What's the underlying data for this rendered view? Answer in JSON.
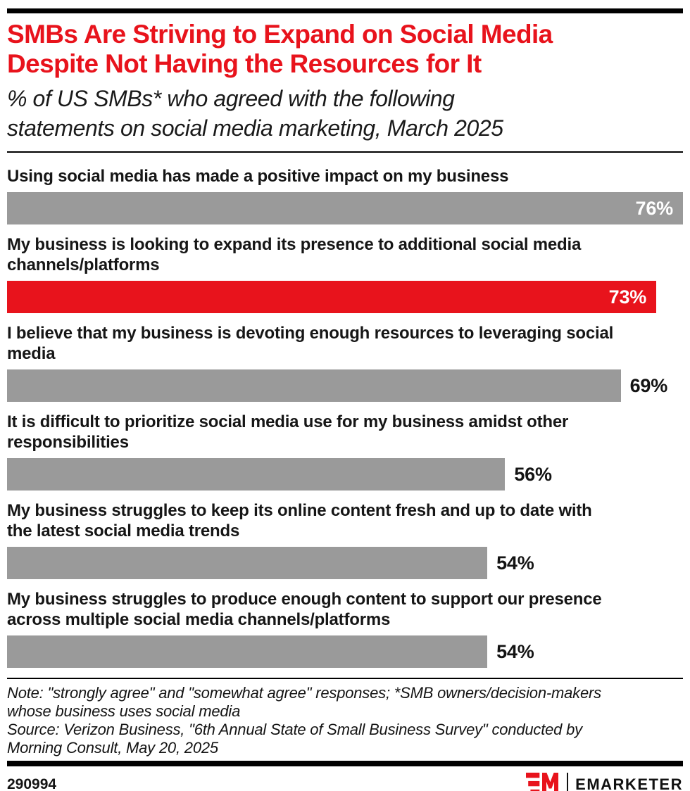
{
  "theme": {
    "accent_red": "#e8131c",
    "bar_gray": "#9a9a9a",
    "text_black": "#141414",
    "rule_black": "#000000",
    "background": "#ffffff"
  },
  "header": {
    "title_lines": [
      "SMBs Are Striving to Expand on Social Media",
      "Despite Not Having the Resources for It"
    ],
    "subtitle_lines": [
      "% of US SMBs* who agreed with the following",
      "statements on social media marketing, March 2025"
    ]
  },
  "chart_data": {
    "type": "bar",
    "orientation": "horizontal",
    "title": "SMBs Are Striving to Expand on Social Media Despite Not Having the Resources for It",
    "subtitle": "% of US SMBs* who agreed with the following statements on social media marketing, March 2025",
    "unit": "%",
    "xlim": [
      0,
      76
    ],
    "grid": false,
    "legend": false,
    "categories": [
      "Using social media has made a positive impact on my business",
      "My business is looking to expand its presence to additional social media channels/platforms",
      "I believe that my business is devoting enough resources to leveraging social media",
      "It is difficult to prioritize social media use for my business amidst other responsibilities",
      "My business struggles to keep its online content fresh and up to date with the latest social media trends",
      "My business struggles to produce enough content to support our presence across multiple social media channels/platforms"
    ],
    "values": [
      76,
      73,
      69,
      56,
      54,
      54
    ],
    "highlight_index": 1,
    "value_label_positions": [
      "inside",
      "inside",
      "outside",
      "outside",
      "outside",
      "outside"
    ]
  },
  "rows_display": [
    {
      "label_lines": [
        "Using social media has made a positive impact on my business"
      ],
      "value_inside": true,
      "highlight": false
    },
    {
      "label_lines": [
        "My business is looking to expand its presence to additional social media",
        "channels/platforms"
      ],
      "value_inside": true,
      "highlight": true
    },
    {
      "label_lines": [
        "I believe that my business is devoting enough resources to leveraging social",
        "media"
      ],
      "value_inside": false,
      "highlight": false
    },
    {
      "label_lines": [
        "It is difficult to prioritize social media use for my business amidst other",
        "responsibilities"
      ],
      "value_inside": false,
      "highlight": false
    },
    {
      "label_lines": [
        "My business struggles to keep its online content fresh and up to date with",
        "the latest social media trends"
      ],
      "value_inside": false,
      "highlight": false
    },
    {
      "label_lines": [
        "My business struggles to produce enough content to support our presence",
        "across multiple social media channels/platforms"
      ],
      "value_inside": false,
      "highlight": false
    }
  ],
  "footer": {
    "note_lines": [
      "Note: \"strongly agree\" and \"somewhat agree\" responses; *SMB owners/decision-makers",
      "whose business uses social media"
    ],
    "source_lines": [
      "Source: Verizon Business, \"6th Annual State of Small Business Survey\" conducted by",
      "Morning Consult, May 20, 2025"
    ],
    "chart_id": "290994",
    "brand_name": "EMARKETER"
  }
}
